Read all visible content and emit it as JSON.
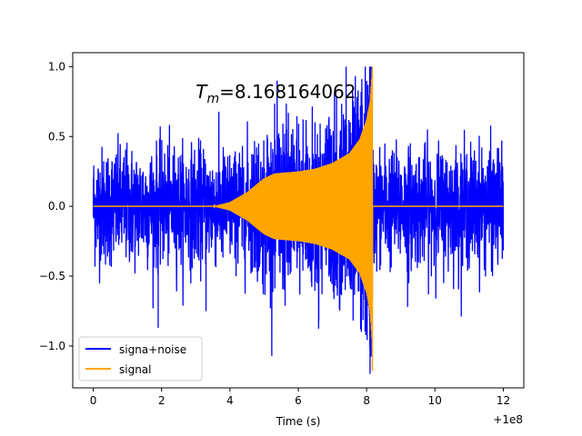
{
  "chart_data": {
    "type": "line",
    "title": "",
    "xlabel": "Time (s)",
    "ylabel": "",
    "x_offset_label": "+1e8",
    "xlim": [
      -0.6,
      12.6
    ],
    "ylim": [
      -1.3,
      1.1
    ],
    "x_ticks": [
      0,
      2,
      4,
      6,
      8,
      10,
      12
    ],
    "x_tick_labels": [
      "0",
      "2",
      "4",
      "6",
      "8",
      "10",
      "12"
    ],
    "y_ticks": [
      -1.0,
      -0.5,
      0.0,
      0.5,
      1.0
    ],
    "y_tick_labels": [
      "−1.0",
      "−0.5",
      "0.0",
      "0.5",
      "1.0"
    ],
    "grid": false,
    "legend_position": "lower-left",
    "annotation": {
      "symbol": "T",
      "subscript": "m",
      "value_text": "=8.168164062",
      "x": 3.0,
      "y": 0.82
    },
    "series": [
      {
        "name": "signa+noise",
        "color": "#0000ff",
        "description": "noisy waveform spanning 0 to 12 s",
        "noise_band_upper": 0.5,
        "noise_band_lower": -0.5,
        "peak_max": 1.0,
        "peak_min": -1.2
      },
      {
        "name": "signal",
        "color": "#ffa500",
        "description": "chirp envelope: zero until ~4 s, rises to ~0.25 near 5.3 s, grows to 1.0 at 8.168 s, then drops to 0",
        "envelope": [
          [
            0,
            0
          ],
          [
            3.5,
            0.0
          ],
          [
            4.0,
            0.03
          ],
          [
            4.5,
            0.1
          ],
          [
            5.0,
            0.2
          ],
          [
            5.3,
            0.235
          ],
          [
            5.5,
            0.24
          ],
          [
            6.0,
            0.25
          ],
          [
            6.5,
            0.27
          ],
          [
            7.0,
            0.31
          ],
          [
            7.5,
            0.38
          ],
          [
            7.8,
            0.48
          ],
          [
            8.0,
            0.62
          ],
          [
            8.1,
            0.75
          ],
          [
            8.168,
            1.0
          ]
        ],
        "peak_time": 8.168164062,
        "peak_max": 1.0,
        "peak_min": -1.18
      }
    ]
  }
}
